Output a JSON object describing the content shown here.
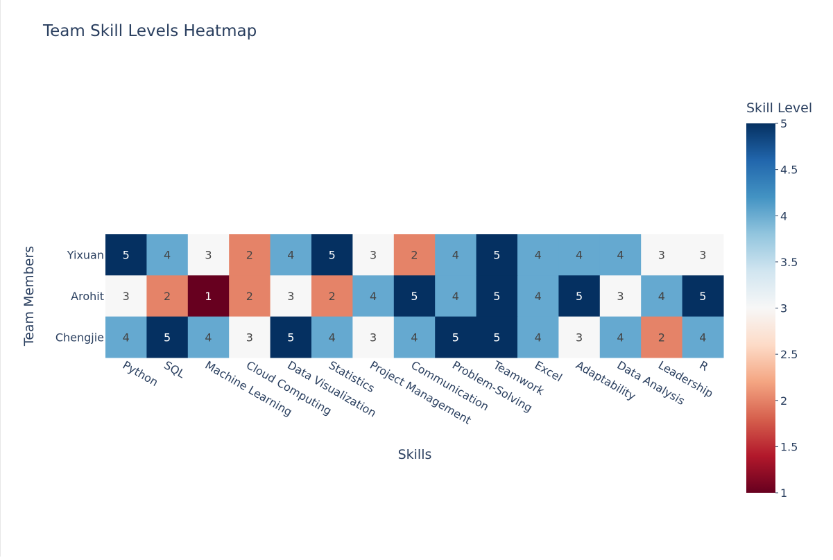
{
  "chart_data": {
    "type": "heatmap",
    "title": "Team Skill Levels Heatmap",
    "xlabel": "Skills",
    "ylabel": "Team Members",
    "x": [
      "Python",
      "SQL",
      "Machine Learning",
      "Cloud Computing",
      "Data Visualization",
      "Statistics",
      "Project Management",
      "Communication",
      "Problem-Solving",
      "Teamwork",
      "Excel",
      "Adaptability",
      "Data Analysis",
      "Leadership",
      "R"
    ],
    "y": [
      "Yixuan",
      "Arohit",
      "Chengjie"
    ],
    "z": [
      [
        5,
        4,
        3,
        2,
        4,
        5,
        3,
        2,
        4,
        5,
        4,
        4,
        4,
        3,
        3
      ],
      [
        3,
        2,
        1,
        2,
        3,
        2,
        4,
        5,
        4,
        5,
        4,
        5,
        3,
        4,
        5
      ],
      [
        4,
        5,
        4,
        3,
        5,
        4,
        3,
        4,
        5,
        5,
        4,
        3,
        4,
        2,
        4
      ]
    ],
    "colorbar": {
      "title": "Skill Level",
      "range": [
        1,
        5
      ],
      "ticks": [
        "1",
        "1.5",
        "2",
        "2.5",
        "3",
        "3.5",
        "4",
        "4.5",
        "5"
      ],
      "colorscale": "RdBu",
      "stops": [
        [
          0.0,
          "#67001f"
        ],
        [
          0.1,
          "#b2182b"
        ],
        [
          0.2,
          "#d6604d"
        ],
        [
          0.3,
          "#f4a582"
        ],
        [
          0.4,
          "#fddbc7"
        ],
        [
          0.5,
          "#f7f7f7"
        ],
        [
          0.6,
          "#d1e5f0"
        ],
        [
          0.7,
          "#92c5de"
        ],
        [
          0.8,
          "#4393c3"
        ],
        [
          0.9,
          "#2166ac"
        ],
        [
          1.0,
          "#053061"
        ]
      ],
      "cell_colors": {
        "1": "#67001f",
        "2": "#e58368",
        "3": "#f7f7f7",
        "4": "#65a9d0",
        "5": "#053061"
      }
    }
  }
}
